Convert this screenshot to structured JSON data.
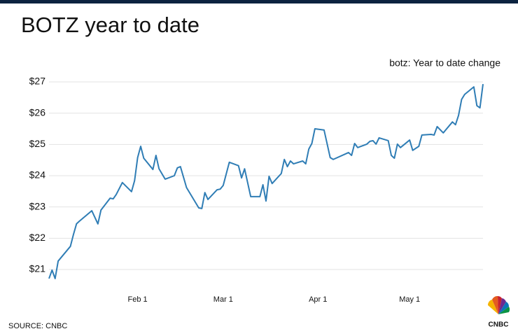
{
  "chart_data": {
    "type": "line",
    "title": "BOTZ year to date",
    "subtitle": "botz: Year to date change",
    "source": "SOURCE: CNBC",
    "logo": "CNBC",
    "color": "#2f7db5",
    "grid": true,
    "x": [
      3,
      4,
      5,
      6,
      10,
      11,
      12,
      13,
      17,
      19,
      20,
      23,
      24,
      25,
      27,
      30,
      31,
      32,
      33,
      34,
      37,
      38,
      39,
      41,
      44,
      45,
      46,
      48,
      52,
      53,
      54,
      55,
      58,
      59,
      60,
      62,
      65,
      66,
      67,
      69,
      72,
      73,
      74,
      75,
      76,
      79,
      80,
      81,
      82,
      83,
      86,
      87,
      88,
      89,
      90,
      93,
      95,
      96,
      101,
      102,
      103,
      104,
      107,
      108,
      109,
      110,
      111,
      114,
      115,
      116,
      117,
      118,
      121,
      122,
      124,
      125,
      128,
      129,
      130,
      132,
      135,
      136,
      137,
      138,
      139,
      142,
      143,
      144,
      145
    ],
    "values": [
      20.71,
      20.98,
      20.71,
      21.27,
      21.74,
      22.12,
      22.46,
      22.55,
      22.88,
      22.46,
      22.9,
      23.28,
      23.26,
      23.4,
      23.78,
      23.49,
      23.84,
      24.58,
      24.94,
      24.56,
      24.2,
      24.65,
      24.22,
      23.89,
      24.0,
      24.25,
      24.29,
      23.62,
      22.97,
      22.95,
      23.46,
      23.24,
      23.55,
      23.57,
      23.69,
      24.43,
      24.32,
      23.93,
      24.22,
      23.33,
      23.33,
      23.71,
      23.19,
      23.98,
      23.75,
      24.07,
      24.52,
      24.29,
      24.47,
      24.38,
      24.47,
      24.38,
      24.85,
      25.03,
      25.5,
      25.46,
      24.58,
      24.52,
      24.74,
      24.65,
      25.03,
      24.9,
      25.01,
      25.1,
      25.12,
      25.01,
      25.21,
      25.12,
      24.65,
      24.56,
      25.01,
      24.9,
      25.14,
      24.81,
      24.94,
      25.3,
      25.32,
      25.3,
      25.57,
      25.37,
      25.72,
      25.63,
      25.93,
      26.44,
      26.6,
      26.84,
      26.24,
      26.17,
      26.93
    ],
    "xlim": [
      3,
      145
    ],
    "xticks": [
      {
        "value": 32,
        "label": "Feb 1"
      },
      {
        "value": 60,
        "label": "Mar 1"
      },
      {
        "value": 91,
        "label": "Apr 1"
      },
      {
        "value": 121,
        "label": "May 1"
      }
    ],
    "ylim": [
      20.7,
      27.3
    ],
    "yticks": [
      {
        "value": 21,
        "label": "$21"
      },
      {
        "value": 22,
        "label": "$22"
      },
      {
        "value": 23,
        "label": "$23"
      },
      {
        "value": 24,
        "label": "$24"
      },
      {
        "value": 25,
        "label": "$25"
      },
      {
        "value": 26,
        "label": "$26"
      },
      {
        "value": 27,
        "label": "$27"
      }
    ]
  }
}
